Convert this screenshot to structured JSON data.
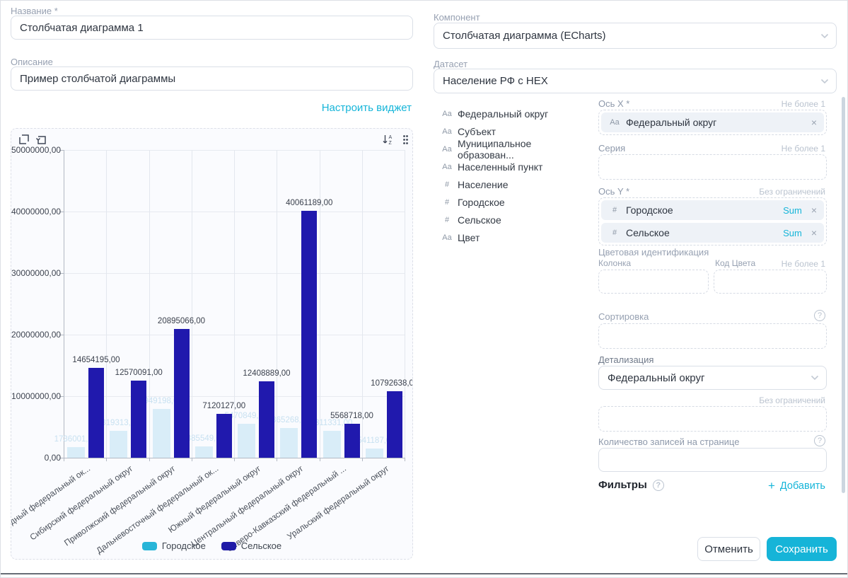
{
  "glyphs": {
    "help": "?",
    "plus": "+",
    "close": "×",
    "chevron": "v"
  },
  "colors": {
    "accent": "#15b5d9",
    "bar_urban_light": "#d9edf8",
    "bar_rural_dark": "#2019ad",
    "legend_urban": "#28b5d8",
    "legend_rural": "#1f1ba7"
  },
  "left_panel": {
    "name": {
      "label": "Название *",
      "value": "Столбчатая диаграмма 1"
    },
    "description": {
      "label": "Описание",
      "value": "Пример столбчатой диаграммы"
    },
    "configure_widget_link": "Настроить виджет"
  },
  "right_panel": {
    "component": {
      "label": "Компонент",
      "value": "Столбчатая диаграмма (ECharts)"
    },
    "dataset": {
      "label": "Датасет",
      "value": "Население РФ с HEX"
    },
    "fields": [
      {
        "icon": "Aa",
        "label": "Федеральный округ"
      },
      {
        "icon": "Aa",
        "label": "Субъект"
      },
      {
        "icon": "Aa",
        "label": "Муниципальное образован..."
      },
      {
        "icon": "Aa",
        "label": "Населенный пункт"
      },
      {
        "icon": "#",
        "label": "Население"
      },
      {
        "icon": "#",
        "label": "Городское"
      },
      {
        "icon": "#",
        "label": "Сельское"
      },
      {
        "icon": "Aa",
        "label": "Цвет"
      }
    ],
    "config": {
      "x_axis": {
        "label": "Ось X *",
        "hint": "Не более 1",
        "chip": {
          "icon": "Aa",
          "label": "Федеральный округ"
        }
      },
      "series": {
        "label": "Серия",
        "hint": "Не более 1"
      },
      "y_axis": {
        "label": "Ось Y *",
        "hint": "Без ограничений",
        "chips": [
          {
            "icon": "#",
            "label": "Городское",
            "agg": "Sum"
          },
          {
            "icon": "#",
            "label": "Сельское",
            "agg": "Sum"
          }
        ]
      },
      "color_ident": {
        "label": "Цветовая идентификация",
        "col_label": "Колонка",
        "code_label": "Код Цвета",
        "hint": "Не более 1"
      },
      "sorting": {
        "label": "Сортировка"
      },
      "detail": {
        "label": "Детализация",
        "value": "Федеральный округ",
        "hint": "Без ограничений"
      },
      "page_size": {
        "label": "Количество записей на странице"
      },
      "filters": {
        "label": "Фильтры",
        "add_label": "Добавить"
      }
    },
    "footer": {
      "cancel_label": "Отменить",
      "save_label": "Сохранить"
    }
  },
  "chart_data": {
    "type": "bar",
    "title": "",
    "xlabel": "",
    "ylabel": "",
    "grid": true,
    "legend_position": "bottom",
    "ylim": [
      0,
      50000000
    ],
    "decimal_suffix": ",00",
    "y_ticks": [
      {
        "value": 0,
        "label": "0,00"
      },
      {
        "value": 10000000,
        "label": "10000000,00"
      },
      {
        "value": 20000000,
        "label": "20000000,00"
      },
      {
        "value": 30000000,
        "label": "30000000,00"
      },
      {
        "value": 40000000,
        "label": "40000000,00"
      },
      {
        "value": 50000000,
        "label": "50000000,00"
      }
    ],
    "categories": [
      "дный федеральный ок...",
      "Сибирский федеральный округ",
      "Приволжский федеральный округ",
      "Дальневосточный федеральный ок...",
      "Южный федеральный округ",
      "Центральный федеральный округ",
      "Северо-Кавказский федеральный ...",
      "Уральский федеральный округ"
    ],
    "series": [
      {
        "name": "Городское",
        "color": "#d9edf8",
        "legend_color": "#28b5d8",
        "values": [
          1736001,
          4319313,
          7949198,
          1885549,
          5470849,
          4865268,
          4311331,
          1541187
        ]
      },
      {
        "name": "Сельское",
        "color": "#2019ad",
        "legend_color": "#1f1ba7",
        "values": [
          14654195,
          12570091,
          20895066,
          7120127,
          12408889,
          40061189,
          5568718,
          10792638
        ]
      }
    ]
  }
}
